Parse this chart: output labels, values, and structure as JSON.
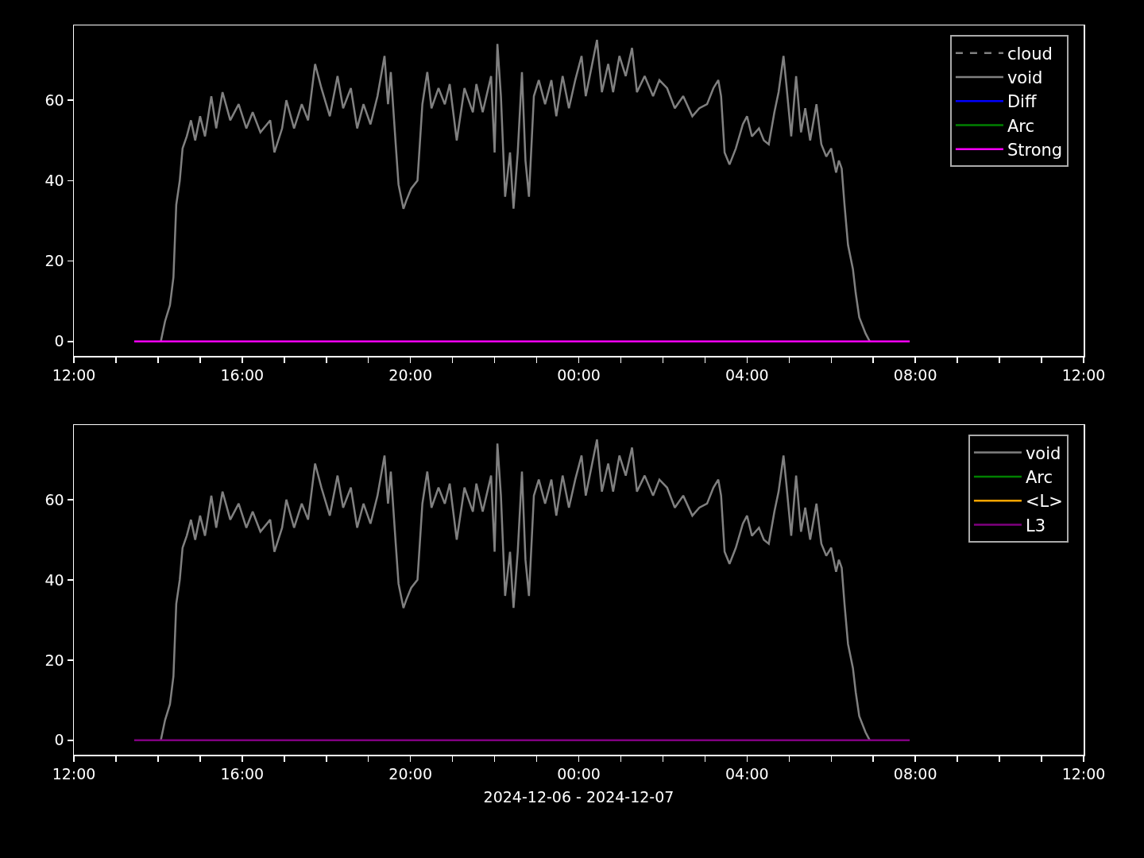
{
  "chart_data": [
    {
      "type": "line",
      "legend": "top right",
      "grid": false,
      "xlim": [
        "2024-12-06T12:00",
        "2024-12-07T12:00"
      ],
      "xticks": [
        {
          "value": "2024-12-06T12:00",
          "label": "12:00"
        },
        {
          "value": "2024-12-06T13:00",
          "label": null
        },
        {
          "value": "2024-12-06T14:00",
          "label": null
        },
        {
          "value": "2024-12-06T15:00",
          "label": null
        },
        {
          "value": "2024-12-06T16:00",
          "label": "16:00"
        },
        {
          "value": "2024-12-06T17:00",
          "label": null
        },
        {
          "value": "2024-12-06T18:00",
          "label": null
        },
        {
          "value": "2024-12-06T19:00",
          "label": null
        },
        {
          "value": "2024-12-06T20:00",
          "label": "20:00"
        },
        {
          "value": "2024-12-06T21:00",
          "label": null
        },
        {
          "value": "2024-12-06T22:00",
          "label": null
        },
        {
          "value": "2024-12-06T23:00",
          "label": null
        },
        {
          "value": "2024-12-07T00:00",
          "label": "00:00"
        },
        {
          "value": "2024-12-07T01:00",
          "label": null
        },
        {
          "value": "2024-12-07T02:00",
          "label": null
        },
        {
          "value": "2024-12-07T03:00",
          "label": null
        },
        {
          "value": "2024-12-07T04:00",
          "label": "04:00"
        },
        {
          "value": "2024-12-07T05:00",
          "label": null
        },
        {
          "value": "2024-12-07T06:00",
          "label": null
        },
        {
          "value": "2024-12-07T07:00",
          "label": null
        },
        {
          "value": "2024-12-07T08:00",
          "label": "08:00"
        },
        {
          "value": "2024-12-07T09:00",
          "label": null
        },
        {
          "value": "2024-12-07T10:00",
          "label": null
        },
        {
          "value": "2024-12-07T11:00",
          "label": null
        },
        {
          "value": "2024-12-07T12:00",
          "label": "12:00"
        }
      ],
      "ylim": [
        -3.6,
        78.6
      ],
      "yticks": [
        0,
        20,
        40,
        60
      ],
      "series": [
        {
          "name": "cloud",
          "color": "#808080",
          "line_style": "dashed"
        },
        {
          "name": "void",
          "color": "#808080",
          "x": [
            "2024-12-06T14:04",
            "2024-12-06T14:10",
            "2024-12-06T14:17",
            "2024-12-06T14:22",
            "2024-12-06T14:26",
            "2024-12-06T14:31",
            "2024-12-06T14:35",
            "2024-12-06T14:41",
            "2024-12-06T14:47",
            "2024-12-06T14:53",
            "2024-12-06T15:00",
            "2024-12-06T15:07",
            "2024-12-06T15:16",
            "2024-12-06T15:23",
            "2024-12-06T15:32",
            "2024-12-06T15:43",
            "2024-12-06T15:55",
            "2024-12-06T16:06",
            "2024-12-06T16:15",
            "2024-12-06T16:26",
            "2024-12-06T16:40",
            "2024-12-06T16:46",
            "2024-12-06T16:57",
            "2024-12-06T17:03",
            "2024-12-06T17:14",
            "2024-12-06T17:25",
            "2024-12-06T17:34",
            "2024-12-06T17:44",
            "2024-12-06T17:53",
            "2024-12-06T18:05",
            "2024-12-06T18:16",
            "2024-12-06T18:24",
            "2024-12-06T18:35",
            "2024-12-06T18:44",
            "2024-12-06T18:53",
            "2024-12-06T19:03",
            "2024-12-06T19:13",
            "2024-12-06T19:23",
            "2024-12-06T19:28",
            "2024-12-06T19:32",
            "2024-12-06T19:39",
            "2024-12-06T19:43",
            "2024-12-06T19:50",
            "2024-12-06T19:54",
            "2024-12-06T20:01",
            "2024-12-06T20:10",
            "2024-12-06T20:17",
            "2024-12-06T20:24",
            "2024-12-06T20:30",
            "2024-12-06T20:40",
            "2024-12-06T20:49",
            "2024-12-06T20:56",
            "2024-12-06T21:06",
            "2024-12-06T21:17",
            "2024-12-06T21:29",
            "2024-12-06T21:34",
            "2024-12-06T21:43",
            "2024-12-06T21:55",
            "2024-12-06T22:00",
            "2024-12-06T22:04",
            "2024-12-06T22:09",
            "2024-12-06T22:15",
            "2024-12-06T22:22",
            "2024-12-06T22:27",
            "2024-12-06T22:33",
            "2024-12-06T22:39",
            "2024-12-06T22:44",
            "2024-12-06T22:49",
            "2024-12-06T22:56",
            "2024-12-06T23:03",
            "2024-12-06T23:12",
            "2024-12-06T23:21",
            "2024-12-06T23:28",
            "2024-12-06T23:37",
            "2024-12-06T23:46",
            "2024-12-06T23:55",
            "2024-12-07T00:04",
            "2024-12-07T00:10",
            "2024-12-07T00:18",
            "2024-12-07T00:26",
            "2024-12-07T00:33",
            "2024-12-07T00:42",
            "2024-12-07T00:49",
            "2024-12-07T00:58",
            "2024-12-07T01:07",
            "2024-12-07T01:16",
            "2024-12-07T01:23",
            "2024-12-07T01:34",
            "2024-12-07T01:46",
            "2024-12-07T01:55",
            "2024-12-07T02:06",
            "2024-12-07T02:17",
            "2024-12-07T02:29",
            "2024-12-07T02:42",
            "2024-12-07T02:52",
            "2024-12-07T03:03",
            "2024-12-07T03:12",
            "2024-12-07T03:19",
            "2024-12-07T03:23",
            "2024-12-07T03:28",
            "2024-12-07T03:35",
            "2024-12-07T03:44",
            "2024-12-07T03:54",
            "2024-12-07T04:00",
            "2024-12-07T04:07",
            "2024-12-07T04:17",
            "2024-12-07T04:24",
            "2024-12-07T04:31",
            "2024-12-07T04:39",
            "2024-12-07T04:45",
            "2024-12-07T04:52",
            "2024-12-07T04:56",
            "2024-12-07T05:03",
            "2024-12-07T05:10",
            "2024-12-07T05:17",
            "2024-12-07T05:23",
            "2024-12-07T05:30",
            "2024-12-07T05:39",
            "2024-12-07T05:46",
            "2024-12-07T05:53",
            "2024-12-07T06:00",
            "2024-12-07T06:07",
            "2024-12-07T06:11",
            "2024-12-07T06:15",
            "2024-12-07T06:19",
            "2024-12-07T06:24",
            "2024-12-07T06:31",
            "2024-12-07T06:35",
            "2024-12-07T06:40",
            "2024-12-07T06:49",
            "2024-12-07T06:55"
          ],
          "values": [
            0,
            5,
            9,
            16,
            34,
            40,
            48,
            51,
            55,
            50,
            56,
            51,
            61,
            53,
            62,
            55,
            59,
            53,
            57,
            52,
            55,
            47,
            53,
            60,
            53,
            59,
            55,
            69,
            63,
            56,
            66,
            58,
            63,
            53,
            59,
            54,
            61,
            71,
            59,
            67,
            49,
            39,
            33,
            35,
            38,
            40,
            59,
            67,
            58,
            63,
            59,
            64,
            50,
            63,
            57,
            64,
            57,
            66,
            47,
            74,
            61,
            36,
            47,
            33,
            47,
            67,
            45,
            36,
            61,
            65,
            59,
            65,
            56,
            66,
            58,
            65,
            71,
            61,
            68,
            75,
            62,
            69,
            62,
            71,
            66,
            73,
            62,
            66,
            61,
            65,
            63,
            58,
            61,
            56,
            58,
            59,
            63,
            65,
            61,
            47,
            44,
            48,
            54,
            56,
            51,
            53,
            50,
            49,
            57,
            62,
            71,
            64,
            51,
            66,
            52,
            58,
            50,
            59,
            49,
            46,
            48,
            42,
            45,
            43,
            34,
            24,
            18,
            12,
            6,
            2,
            0
          ]
        },
        {
          "name": "Diff",
          "color": "#0000ff"
        },
        {
          "name": "Arc",
          "color": "#008000"
        },
        {
          "name": "Strong",
          "color": "#ff00ff",
          "x": [
            "2024-12-06T13:26",
            "2024-12-07T07:52"
          ],
          "values": [
            0,
            0
          ]
        }
      ]
    },
    {
      "type": "line",
      "legend": "top right",
      "grid": false,
      "xlabel": "2024-12-06 - 2024-12-07",
      "xlim": [
        "2024-12-06T12:00",
        "2024-12-07T12:00"
      ],
      "xticks": [
        {
          "value": "2024-12-06T12:00",
          "label": "12:00"
        },
        {
          "value": "2024-12-06T13:00",
          "label": null
        },
        {
          "value": "2024-12-06T14:00",
          "label": null
        },
        {
          "value": "2024-12-06T15:00",
          "label": null
        },
        {
          "value": "2024-12-06T16:00",
          "label": "16:00"
        },
        {
          "value": "2024-12-06T17:00",
          "label": null
        },
        {
          "value": "2024-12-06T18:00",
          "label": null
        },
        {
          "value": "2024-12-06T19:00",
          "label": null
        },
        {
          "value": "2024-12-06T20:00",
          "label": "20:00"
        },
        {
          "value": "2024-12-06T21:00",
          "label": null
        },
        {
          "value": "2024-12-06T22:00",
          "label": null
        },
        {
          "value": "2024-12-06T23:00",
          "label": null
        },
        {
          "value": "2024-12-07T00:00",
          "label": "00:00"
        },
        {
          "value": "2024-12-07T01:00",
          "label": null
        },
        {
          "value": "2024-12-07T02:00",
          "label": null
        },
        {
          "value": "2024-12-07T03:00",
          "label": null
        },
        {
          "value": "2024-12-07T04:00",
          "label": "04:00"
        },
        {
          "value": "2024-12-07T05:00",
          "label": null
        },
        {
          "value": "2024-12-07T06:00",
          "label": null
        },
        {
          "value": "2024-12-07T07:00",
          "label": null
        },
        {
          "value": "2024-12-07T08:00",
          "label": "08:00"
        },
        {
          "value": "2024-12-07T09:00",
          "label": null
        },
        {
          "value": "2024-12-07T10:00",
          "label": null
        },
        {
          "value": "2024-12-07T11:00",
          "label": null
        },
        {
          "value": "2024-12-07T12:00",
          "label": "12:00"
        }
      ],
      "ylim": [
        -3.6,
        78.6
      ],
      "yticks": [
        0,
        20,
        40,
        60
      ],
      "series": [
        {
          "name": "void",
          "color": "#808080",
          "x": [
            "2024-12-06T14:04",
            "2024-12-06T14:10",
            "2024-12-06T14:17",
            "2024-12-06T14:22",
            "2024-12-06T14:26",
            "2024-12-06T14:31",
            "2024-12-06T14:35",
            "2024-12-06T14:41",
            "2024-12-06T14:47",
            "2024-12-06T14:53",
            "2024-12-06T15:00",
            "2024-12-06T15:07",
            "2024-12-06T15:16",
            "2024-12-06T15:23",
            "2024-12-06T15:32",
            "2024-12-06T15:43",
            "2024-12-06T15:55",
            "2024-12-06T16:06",
            "2024-12-06T16:15",
            "2024-12-06T16:26",
            "2024-12-06T16:40",
            "2024-12-06T16:46",
            "2024-12-06T16:57",
            "2024-12-06T17:03",
            "2024-12-06T17:14",
            "2024-12-06T17:25",
            "2024-12-06T17:34",
            "2024-12-06T17:44",
            "2024-12-06T17:53",
            "2024-12-06T18:05",
            "2024-12-06T18:16",
            "2024-12-06T18:24",
            "2024-12-06T18:35",
            "2024-12-06T18:44",
            "2024-12-06T18:53",
            "2024-12-06T19:03",
            "2024-12-06T19:13",
            "2024-12-06T19:23",
            "2024-12-06T19:28",
            "2024-12-06T19:32",
            "2024-12-06T19:39",
            "2024-12-06T19:43",
            "2024-12-06T19:50",
            "2024-12-06T19:54",
            "2024-12-06T20:01",
            "2024-12-06T20:10",
            "2024-12-06T20:17",
            "2024-12-06T20:24",
            "2024-12-06T20:30",
            "2024-12-06T20:40",
            "2024-12-06T20:49",
            "2024-12-06T20:56",
            "2024-12-06T21:06",
            "2024-12-06T21:17",
            "2024-12-06T21:29",
            "2024-12-06T21:34",
            "2024-12-06T21:43",
            "2024-12-06T21:55",
            "2024-12-06T22:00",
            "2024-12-06T22:04",
            "2024-12-06T22:09",
            "2024-12-06T22:15",
            "2024-12-06T22:22",
            "2024-12-06T22:27",
            "2024-12-06T22:33",
            "2024-12-06T22:39",
            "2024-12-06T22:44",
            "2024-12-06T22:49",
            "2024-12-06T22:56",
            "2024-12-06T23:03",
            "2024-12-06T23:12",
            "2024-12-06T23:21",
            "2024-12-06T23:28",
            "2024-12-06T23:37",
            "2024-12-06T23:46",
            "2024-12-06T23:55",
            "2024-12-07T00:04",
            "2024-12-07T00:10",
            "2024-12-07T00:18",
            "2024-12-07T00:26",
            "2024-12-07T00:33",
            "2024-12-07T00:42",
            "2024-12-07T00:49",
            "2024-12-07T00:58",
            "2024-12-07T01:07",
            "2024-12-07T01:16",
            "2024-12-07T01:23",
            "2024-12-07T01:34",
            "2024-12-07T01:46",
            "2024-12-07T01:55",
            "2024-12-07T02:06",
            "2024-12-07T02:17",
            "2024-12-07T02:29",
            "2024-12-07T02:42",
            "2024-12-07T02:52",
            "2024-12-07T03:03",
            "2024-12-07T03:12",
            "2024-12-07T03:19",
            "2024-12-07T03:23",
            "2024-12-07T03:28",
            "2024-12-07T03:35",
            "2024-12-07T03:44",
            "2024-12-07T03:54",
            "2024-12-07T04:00",
            "2024-12-07T04:07",
            "2024-12-07T04:17",
            "2024-12-07T04:24",
            "2024-12-07T04:31",
            "2024-12-07T04:39",
            "2024-12-07T04:45",
            "2024-12-07T04:52",
            "2024-12-07T04:56",
            "2024-12-07T05:03",
            "2024-12-07T05:10",
            "2024-12-07T05:17",
            "2024-12-07T05:23",
            "2024-12-07T05:30",
            "2024-12-07T05:39",
            "2024-12-07T05:46",
            "2024-12-07T05:53",
            "2024-12-07T06:00",
            "2024-12-07T06:07",
            "2024-12-07T06:11",
            "2024-12-07T06:15",
            "2024-12-07T06:19",
            "2024-12-07T06:24",
            "2024-12-07T06:31",
            "2024-12-07T06:35",
            "2024-12-07T06:40",
            "2024-12-07T06:49",
            "2024-12-07T06:55"
          ],
          "values": [
            0,
            5,
            9,
            16,
            34,
            40,
            48,
            51,
            55,
            50,
            56,
            51,
            61,
            53,
            62,
            55,
            59,
            53,
            57,
            52,
            55,
            47,
            53,
            60,
            53,
            59,
            55,
            69,
            63,
            56,
            66,
            58,
            63,
            53,
            59,
            54,
            61,
            71,
            59,
            67,
            49,
            39,
            33,
            35,
            38,
            40,
            59,
            67,
            58,
            63,
            59,
            64,
            50,
            63,
            57,
            64,
            57,
            66,
            47,
            74,
            61,
            36,
            47,
            33,
            47,
            67,
            45,
            36,
            61,
            65,
            59,
            65,
            56,
            66,
            58,
            65,
            71,
            61,
            68,
            75,
            62,
            69,
            62,
            71,
            66,
            73,
            62,
            66,
            61,
            65,
            63,
            58,
            61,
            56,
            58,
            59,
            63,
            65,
            61,
            47,
            44,
            48,
            54,
            56,
            51,
            53,
            50,
            49,
            57,
            62,
            71,
            64,
            51,
            66,
            52,
            58,
            50,
            59,
            49,
            46,
            48,
            42,
            45,
            43,
            34,
            24,
            18,
            12,
            6,
            2,
            0
          ]
        },
        {
          "name": "Arc",
          "color": "#008000"
        },
        {
          "name": "<L>",
          "color": "#ffa500"
        },
        {
          "name": "L3",
          "color": "#800080",
          "x": [
            "2024-12-06T13:26",
            "2024-12-07T07:52"
          ],
          "values": [
            0,
            0
          ]
        }
      ]
    }
  ]
}
